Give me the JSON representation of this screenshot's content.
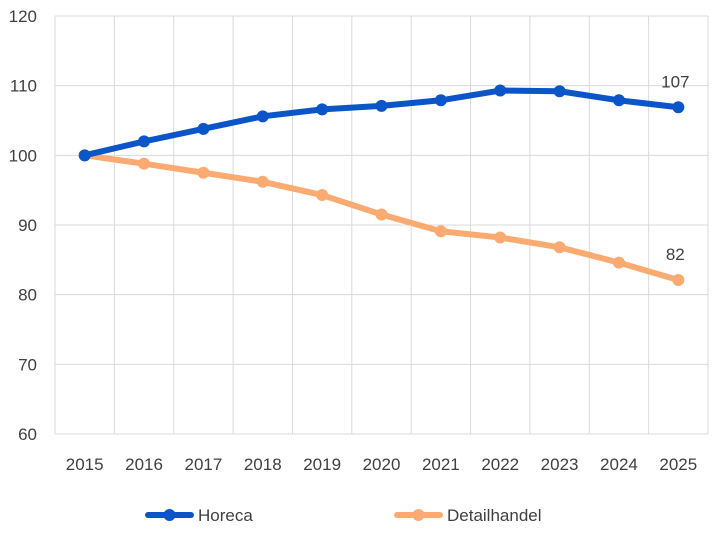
{
  "chart_data": {
    "type": "line",
    "title": "",
    "xlabel": "",
    "ylabel": "",
    "x": [
      "2015",
      "2016",
      "2017",
      "2018",
      "2019",
      "2020",
      "2021",
      "2022",
      "2023",
      "2024",
      "2025"
    ],
    "ylim": [
      60,
      120
    ],
    "yticks": [
      60,
      70,
      80,
      90,
      100,
      110,
      120
    ],
    "grid": true,
    "legend_position": "bottom",
    "series": [
      {
        "name": "Horeca",
        "color": "#0B55C8",
        "values": [
          100,
          102,
          103.8,
          105.6,
          106.6,
          107.1,
          107.9,
          109.3,
          109.2,
          107.9,
          106.9
        ],
        "end_label": "107"
      },
      {
        "name": "Detailhandel",
        "color": "#FBAB72",
        "values": [
          100,
          98.8,
          97.5,
          96.2,
          94.3,
          91.5,
          89.1,
          88.2,
          86.8,
          84.6,
          82.1
        ],
        "end_label": "82"
      }
    ]
  }
}
